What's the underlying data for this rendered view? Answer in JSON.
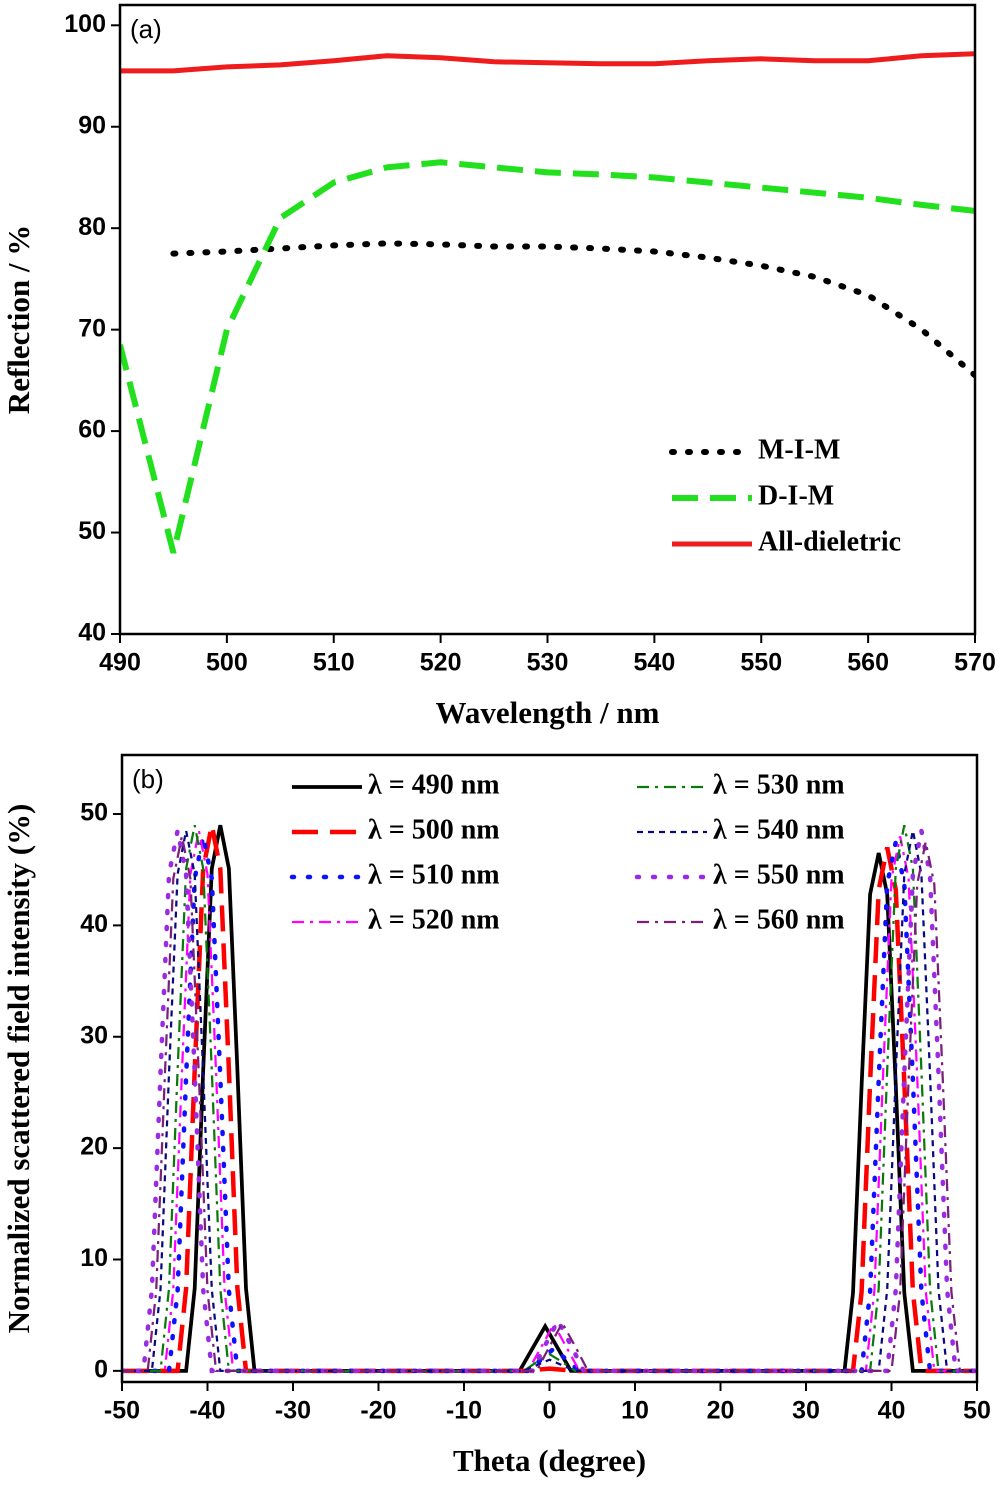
{
  "chart_data": [
    {
      "type": "line",
      "annotation": "(a)",
      "x_label": "Wavelength / nm",
      "y_label": "Reflection / %",
      "x": [
        490,
        495,
        500,
        505,
        510,
        515,
        520,
        525,
        530,
        535,
        540,
        545,
        550,
        555,
        560,
        565,
        570
      ],
      "xlim": [
        490,
        570
      ],
      "xticks": [
        490,
        500,
        510,
        520,
        530,
        540,
        550,
        560,
        570
      ],
      "ylim": [
        40,
        102
      ],
      "yticks": [
        40,
        50,
        60,
        70,
        80,
        90,
        100
      ],
      "legend": "lower-right",
      "series": [
        {
          "name": "M-I-M",
          "color": "#000000",
          "style": "dot",
          "values": [
            null,
            77.5,
            77.7,
            78,
            78.3,
            78.5,
            78.4,
            78.2,
            78.2,
            78,
            77.7,
            77.1,
            76.3,
            75.2,
            73.4,
            70,
            65.5
          ]
        },
        {
          "name": "D-I-M",
          "color": "#22e01e",
          "style": "dash",
          "values": [
            68.5,
            48,
            70,
            81,
            84.5,
            86,
            86.5,
            86,
            85.5,
            85.3,
            85,
            84.5,
            84,
            83.5,
            83,
            82.3,
            81.7
          ]
        },
        {
          "name": "All-dieletric",
          "color": "#ee1c1c",
          "style": "solid",
          "values": [
            95.5,
            95.5,
            95.9,
            96.1,
            96.5,
            97,
            96.8,
            96.4,
            96.3,
            96.2,
            96.2,
            96.5,
            96.7,
            96.5,
            96.5,
            97,
            97.2
          ]
        }
      ]
    },
    {
      "type": "line",
      "annotation": "(b)",
      "x_label": "Theta (degree)",
      "y_label": "Normalized scattered field intensity (%)",
      "xlim": [
        -50,
        50
      ],
      "xticks": [
        -50,
        -40,
        -30,
        -20,
        -10,
        0,
        10,
        20,
        30,
        40,
        50
      ],
      "ylim": [
        -1,
        55.3
      ],
      "yticks": [
        0,
        10,
        20,
        30,
        40,
        50
      ],
      "legend": "upper-center",
      "series": [
        {
          "name": "λ = 490 nm",
          "color": "#000000",
          "style": "solid",
          "x": [
            -50,
            -42.5,
            -41.5,
            -40.5,
            -39.5,
            -38.5,
            -37.5,
            -36.5,
            -35.5,
            -34.5,
            -3.5,
            -2,
            -0.5,
            1,
            2.5,
            34.5,
            35.5,
            36.5,
            37.5,
            38.5,
            39.5,
            40.5,
            41.5,
            42.5,
            50
          ],
          "values": [
            0,
            0,
            7.4,
            27,
            45.1,
            49,
            45.1,
            27,
            7.4,
            0,
            0,
            2,
            4,
            2,
            0,
            0,
            7,
            25.6,
            42.8,
            46.5,
            42.8,
            25.6,
            7,
            0,
            0
          ]
        },
        {
          "name": "λ = 500 nm",
          "color": "#ff0000",
          "style": "dash",
          "x": [
            -50,
            -43.5,
            -42.5,
            -41.5,
            -40.5,
            -39.5,
            -38.5,
            -37.5,
            -36.5,
            -35.5,
            -3,
            -1.5,
            0,
            1.5,
            3,
            35.5,
            36.5,
            37.5,
            38.5,
            39.5,
            40.5,
            41.5,
            42.5,
            43.5,
            50
          ],
          "values": [
            0,
            0,
            7.4,
            27,
            45.1,
            49,
            45.1,
            27,
            7.4,
            0,
            0,
            0.1,
            0.2,
            0.1,
            0,
            0,
            7.1,
            25.9,
            43.2,
            47,
            43.2,
            25.9,
            7.1,
            0,
            0
          ]
        },
        {
          "name": "λ = 510 nm",
          "color": "#1010ff",
          "style": "dot",
          "x": [
            -50,
            -44.5,
            -43.5,
            -42.5,
            -41.5,
            -40.5,
            -39.5,
            -38.5,
            -37.5,
            -36.5,
            -2.5,
            -1,
            0.5,
            2,
            3.5,
            36.5,
            37.5,
            38.5,
            39.5,
            40.5,
            41.5,
            42.5,
            43.5,
            44.5,
            50
          ],
          "values": [
            0,
            0,
            7.2,
            26.4,
            44.2,
            48,
            44.2,
            26.4,
            7.2,
            0,
            0,
            1,
            2,
            1,
            0,
            0,
            7.1,
            26.1,
            43.7,
            47.5,
            43.7,
            26.1,
            7.1,
            0,
            0
          ]
        },
        {
          "name": "λ = 520 nm",
          "color": "#ff00ff",
          "style": "dashdot",
          "x": [
            -50,
            -45,
            -44,
            -43,
            -42,
            -41,
            -40,
            -39,
            -38,
            -37,
            -2.5,
            -1,
            0.5,
            2,
            3.5,
            37,
            38,
            39,
            40,
            41,
            42,
            43,
            44,
            45,
            50
          ],
          "values": [
            0,
            0,
            7.3,
            26.7,
            44.6,
            48.5,
            44.6,
            26.7,
            7.3,
            0,
            0,
            2.1,
            4.2,
            2.1,
            0,
            0,
            7.2,
            26.4,
            44.2,
            48,
            44.2,
            26.4,
            7.2,
            0,
            0
          ]
        },
        {
          "name": "λ = 530 nm",
          "color": "#0a7a0a",
          "style": "dashdot",
          "x": [
            -50,
            -45.5,
            -44.5,
            -43.5,
            -42.5,
            -41.5,
            -40.5,
            -39.5,
            -38.5,
            -37.5,
            -3,
            -1.5,
            0,
            1.5,
            3,
            37.5,
            38.5,
            39.5,
            40.5,
            41.5,
            42.5,
            43.5,
            44.5,
            45.5,
            50
          ],
          "values": [
            0,
            0,
            7.4,
            27,
            45.1,
            49,
            45.1,
            27,
            7.4,
            0,
            0,
            0.8,
            1.5,
            0.8,
            0,
            0,
            7.4,
            27,
            45.1,
            49,
            45.1,
            27,
            7.4,
            0,
            0
          ]
        },
        {
          "name": "λ = 540 nm",
          "color": "#0a0a80",
          "style": "shortdash",
          "x": [
            -50,
            -46.5,
            -45.5,
            -44.5,
            -43.5,
            -42.5,
            -41.5,
            -40.5,
            -39.5,
            -38.5,
            -3,
            -1.5,
            0,
            1.5,
            3,
            38.5,
            39.5,
            40.5,
            41.5,
            42.5,
            43.5,
            44.5,
            45.5,
            46.5,
            50
          ],
          "values": [
            0,
            0,
            7.3,
            26.7,
            44.6,
            48.5,
            44.6,
            26.7,
            7.3,
            0,
            0,
            0.5,
            1,
            0.5,
            0,
            0,
            7.3,
            26.7,
            44.6,
            48.5,
            44.6,
            26.7,
            7.3,
            0,
            0
          ]
        },
        {
          "name": "λ = 550 nm",
          "color": "#9a2be2",
          "style": "dot",
          "x": [
            -50,
            -47.5,
            -46.5,
            -45.5,
            -44.5,
            -43.5,
            -42.5,
            -41.5,
            -40.5,
            -39.5,
            -2,
            -0.5,
            1,
            2.5,
            4,
            39.5,
            40.5,
            41.5,
            42.5,
            43.5,
            44.5,
            45.5,
            46.5,
            47.5,
            50
          ],
          "values": [
            0,
            0,
            7.3,
            26.7,
            44.6,
            48.5,
            44.6,
            26.7,
            7.3,
            0,
            0,
            2.3,
            4.5,
            2.3,
            0,
            0,
            7.3,
            26.7,
            44.6,
            48.5,
            44.6,
            26.7,
            7.3,
            0,
            0
          ]
        },
        {
          "name": "λ = 560 nm",
          "color": "#7a1f7a",
          "style": "dashdot",
          "x": [
            -50,
            -47,
            -46,
            -45,
            -44,
            -43,
            -42,
            -41,
            -40,
            -39,
            -1.5,
            0,
            1.5,
            3,
            4.5,
            40,
            41,
            42,
            43,
            44,
            45,
            46,
            47,
            48,
            50
          ],
          "values": [
            0,
            0,
            7.2,
            26.4,
            44.2,
            48,
            44.2,
            26.4,
            7.2,
            0,
            0,
            2.2,
            4.3,
            2.2,
            0,
            0,
            7.1,
            26.1,
            43.7,
            47.5,
            43.7,
            26.1,
            7.1,
            0,
            0
          ]
        }
      ]
    }
  ]
}
